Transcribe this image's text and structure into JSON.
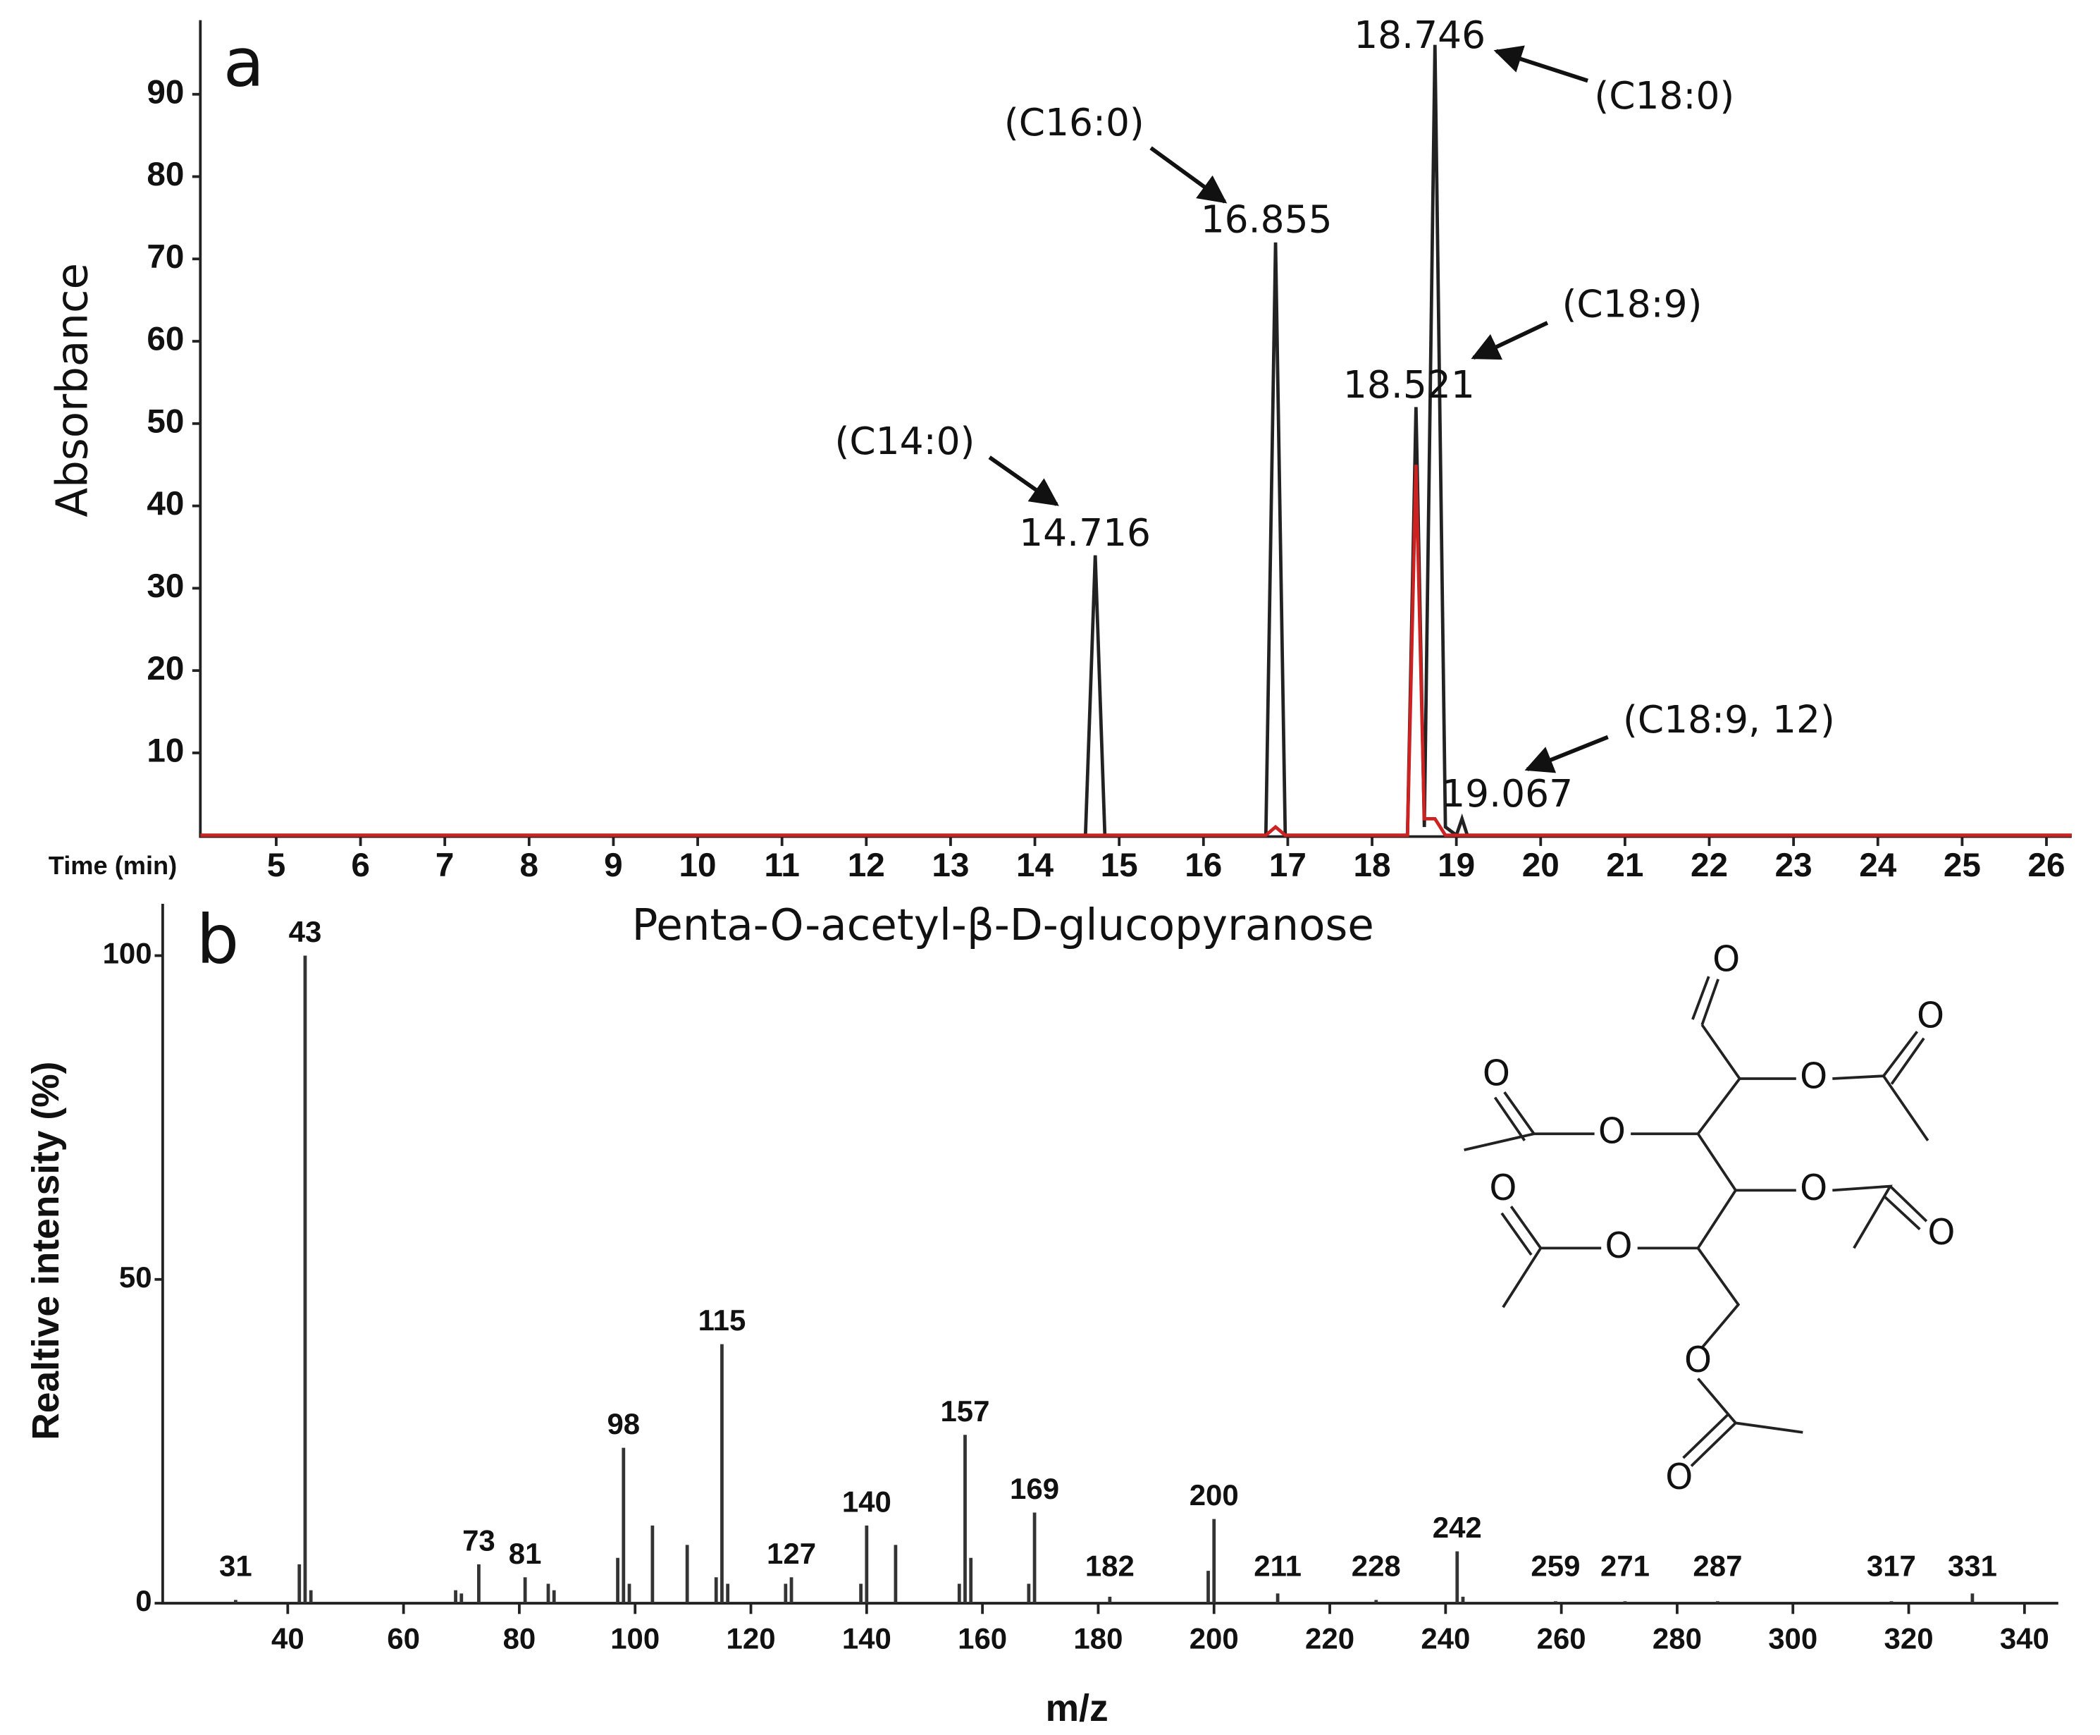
{
  "chart_data": [
    {
      "type": "line",
      "panel": "a",
      "ylabel": "Absorbance",
      "xlabel": "Time (min)",
      "x": [
        4.1,
        14.6,
        14.716,
        14.83,
        16.74,
        16.855,
        16.97,
        18.42,
        18.521,
        18.62,
        18.746,
        18.87,
        19.0,
        19.067,
        19.13,
        26.3
      ],
      "series": [
        {
          "color": "#222222",
          "values": [
            0,
            0,
            34,
            0,
            0,
            72,
            0,
            0,
            52,
            1,
            96,
            1,
            0,
            2,
            0,
            0
          ]
        },
        {
          "color": "#cc2222",
          "values": [
            0,
            0,
            0,
            0,
            0,
            1,
            0,
            0,
            45,
            2,
            2,
            0,
            0,
            0,
            0,
            0
          ]
        }
      ],
      "annotations": [
        "(C14:0)",
        "(C16:0)",
        "(C18:9)",
        "(C18:0)",
        "(C18:9, 12)"
      ],
      "xlim": [
        4.1,
        26.3
      ],
      "xticks": [
        5,
        6,
        7,
        8,
        9,
        10,
        11,
        12,
        13,
        14,
        15,
        16,
        17,
        18,
        19,
        20,
        21,
        22,
        23,
        24,
        25,
        26
      ],
      "ylim": [
        0,
        99
      ],
      "yticks": [
        10,
        20,
        30,
        40,
        50,
        60,
        70,
        80,
        90
      ]
    },
    {
      "type": "bar",
      "panel": "b",
      "title": "Penta-O-acetyl-β-D-glucopyranose",
      "xlabel": "m/z",
      "ylabel": "Realtive intensity (%)",
      "x": [
        31,
        43,
        73,
        81,
        98,
        115,
        127,
        140,
        157,
        169,
        182,
        200,
        211,
        228,
        242,
        259,
        271,
        287,
        317,
        331
      ],
      "values": [
        0.5,
        100,
        6,
        4,
        24,
        40,
        4,
        12,
        26,
        14,
        1,
        13,
        1.5,
        0.5,
        8,
        0.3,
        0.3,
        0.3,
        0.3,
        1.5
      ],
      "color": "#333333",
      "minor": {
        "x": [
          42,
          44,
          69,
          70,
          85,
          86,
          97,
          99,
          103,
          109,
          114,
          116,
          126,
          139,
          145,
          156,
          158,
          168,
          199,
          243
        ],
        "values": [
          6,
          2,
          2,
          1.5,
          3,
          2,
          7,
          3,
          12,
          9,
          4,
          3,
          3,
          3,
          9,
          3,
          7,
          3,
          5,
          1
        ]
      },
      "xlim": [
        18.4,
        347
      ],
      "xticks": [
        40,
        60,
        80,
        100,
        120,
        140,
        160,
        180,
        200,
        220,
        240,
        260,
        280,
        300,
        320,
        340
      ],
      "ylim": [
        0,
        108
      ],
      "yticks": [
        0,
        50,
        100
      ],
      "structure": {
        "atoms": [
          "O",
          "O",
          "O",
          "O",
          "O",
          "O",
          "O",
          "O",
          "O",
          "O",
          "O"
        ]
      }
    }
  ]
}
